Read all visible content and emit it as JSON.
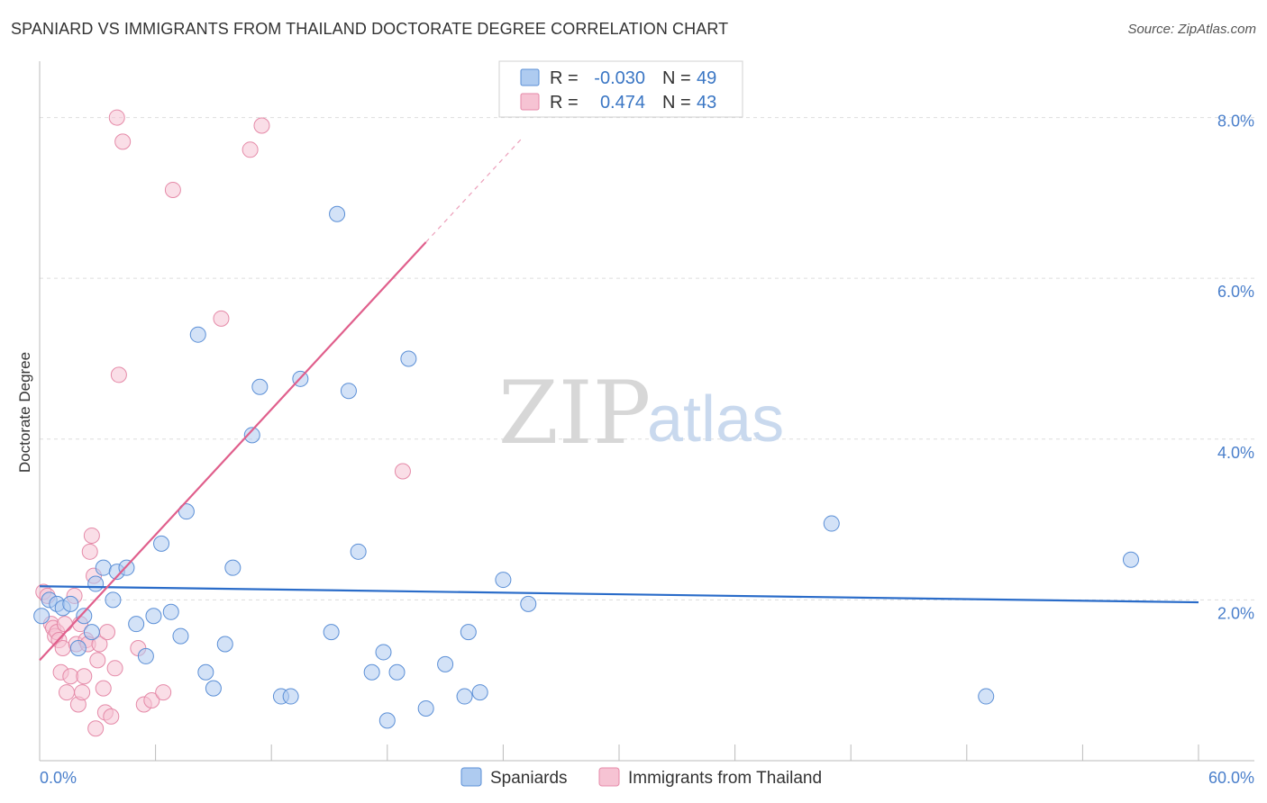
{
  "header": {
    "title": "SPANIARD VS IMMIGRANTS FROM THAILAND DOCTORATE DEGREE CORRELATION CHART",
    "source": "Source: ZipAtlas.com"
  },
  "watermark": {
    "zip": "ZIP",
    "atlas": "atlas"
  },
  "colors": {
    "blue_fill": "#aecbf0",
    "blue_stroke": "#5b8fd6",
    "blue_line": "#2a6cc9",
    "pink_fill": "#f6c3d3",
    "pink_stroke": "#e58aa8",
    "pink_line": "#e05f8c",
    "tick_text": "#4a7fcb",
    "grid": "#dddddd"
  },
  "stats_box": {
    "rows": [
      {
        "r_label": "R =",
        "r_value": "-0.030",
        "n_label": "N =",
        "n_value": "49",
        "series": "blue"
      },
      {
        "r_label": "R =",
        "r_value": "0.474",
        "n_label": "N =",
        "n_value": "43",
        "series": "pink"
      }
    ]
  },
  "chart_data": {
    "type": "scatter",
    "title": "SPANIARD VS IMMIGRANTS FROM THAILAND DOCTORATE DEGREE CORRELATION CHART",
    "xlabel": "",
    "ylabel": "Doctorate Degree",
    "xlim": [
      0,
      60
    ],
    "ylim": [
      0,
      8.6
    ],
    "x_tick_labels": [
      "0.0%",
      "60.0%"
    ],
    "y_ticks": [
      2,
      4,
      6,
      8
    ],
    "y_tick_labels": [
      "2.0%",
      "4.0%",
      "6.0%",
      "8.0%"
    ],
    "grid": "horizontal dashed",
    "legend_position": "bottom-center",
    "series": [
      {
        "name": "Spaniards",
        "color": "blue",
        "r": -0.03,
        "n": 49,
        "trend": {
          "x": [
            0,
            60
          ],
          "y": [
            2.17,
            1.97
          ]
        },
        "points": [
          [
            0.1,
            1.8
          ],
          [
            0.5,
            2.0
          ],
          [
            0.9,
            1.95
          ],
          [
            1.2,
            1.9
          ],
          [
            1.6,
            1.95
          ],
          [
            2.0,
            1.4
          ],
          [
            2.3,
            1.8
          ],
          [
            2.7,
            1.6
          ],
          [
            2.9,
            2.2
          ],
          [
            3.3,
            2.4
          ],
          [
            3.8,
            2.0
          ],
          [
            4.0,
            2.35
          ],
          [
            4.5,
            2.4
          ],
          [
            5.0,
            1.7
          ],
          [
            5.5,
            1.3
          ],
          [
            5.9,
            1.8
          ],
          [
            6.3,
            2.7
          ],
          [
            6.8,
            1.85
          ],
          [
            7.3,
            1.55
          ],
          [
            7.6,
            3.1
          ],
          [
            8.2,
            5.3
          ],
          [
            8.6,
            1.1
          ],
          [
            9.0,
            0.9
          ],
          [
            9.6,
            1.45
          ],
          [
            10.0,
            2.4
          ],
          [
            11.0,
            4.05
          ],
          [
            11.4,
            4.65
          ],
          [
            12.5,
            0.8
          ],
          [
            13.0,
            0.8
          ],
          [
            13.5,
            4.75
          ],
          [
            15.1,
            1.6
          ],
          [
            16.0,
            4.6
          ],
          [
            16.5,
            2.6
          ],
          [
            17.2,
            1.1
          ],
          [
            17.8,
            1.35
          ],
          [
            18.0,
            0.5
          ],
          [
            18.5,
            1.1
          ],
          [
            19.1,
            5.0
          ],
          [
            20.0,
            0.65
          ],
          [
            21.0,
            1.2
          ],
          [
            22.0,
            0.8
          ],
          [
            22.2,
            1.6
          ],
          [
            22.8,
            0.85
          ],
          [
            24.0,
            2.25
          ],
          [
            25.3,
            1.95
          ],
          [
            15.4,
            6.8
          ],
          [
            41.0,
            2.95
          ],
          [
            49.0,
            0.8
          ],
          [
            56.5,
            2.5
          ]
        ]
      },
      {
        "name": "Immigrants from Thailand",
        "color": "pink",
        "r": 0.474,
        "n": 43,
        "trend": {
          "x": [
            0,
            20
          ],
          "y": [
            1.25,
            6.45
          ]
        },
        "trend_dashed": {
          "x": [
            20,
            25
          ],
          "y": [
            6.45,
            7.75
          ]
        },
        "points": [
          [
            0.2,
            2.1
          ],
          [
            0.4,
            2.05
          ],
          [
            0.6,
            1.7
          ],
          [
            0.7,
            1.65
          ],
          [
            0.8,
            1.55
          ],
          [
            0.9,
            1.6
          ],
          [
            1.0,
            1.5
          ],
          [
            1.1,
            1.1
          ],
          [
            1.2,
            1.4
          ],
          [
            1.3,
            1.7
          ],
          [
            1.4,
            0.85
          ],
          [
            1.6,
            1.05
          ],
          [
            1.8,
            2.05
          ],
          [
            1.9,
            1.45
          ],
          [
            2.0,
            0.7
          ],
          [
            2.1,
            1.7
          ],
          [
            2.2,
            0.85
          ],
          [
            2.3,
            1.05
          ],
          [
            2.4,
            1.5
          ],
          [
            2.5,
            1.45
          ],
          [
            2.6,
            2.6
          ],
          [
            2.7,
            2.8
          ],
          [
            2.8,
            2.3
          ],
          [
            2.9,
            0.4
          ],
          [
            3.0,
            1.25
          ],
          [
            3.1,
            1.45
          ],
          [
            3.3,
            0.9
          ],
          [
            3.4,
            0.6
          ],
          [
            3.5,
            1.6
          ],
          [
            3.7,
            0.55
          ],
          [
            3.9,
            1.15
          ],
          [
            4.1,
            4.8
          ],
          [
            4.3,
            7.7
          ],
          [
            5.1,
            1.4
          ],
          [
            5.4,
            0.7
          ],
          [
            5.8,
            0.75
          ],
          [
            6.4,
            0.85
          ],
          [
            6.9,
            7.1
          ],
          [
            9.4,
            5.5
          ],
          [
            10.9,
            7.6
          ],
          [
            18.8,
            3.6
          ],
          [
            4.0,
            8.0
          ],
          [
            11.5,
            7.9
          ]
        ]
      }
    ]
  },
  "legend": {
    "items": [
      {
        "label": "Spaniards",
        "color": "blue"
      },
      {
        "label": "Immigrants from Thailand",
        "color": "pink"
      }
    ]
  }
}
